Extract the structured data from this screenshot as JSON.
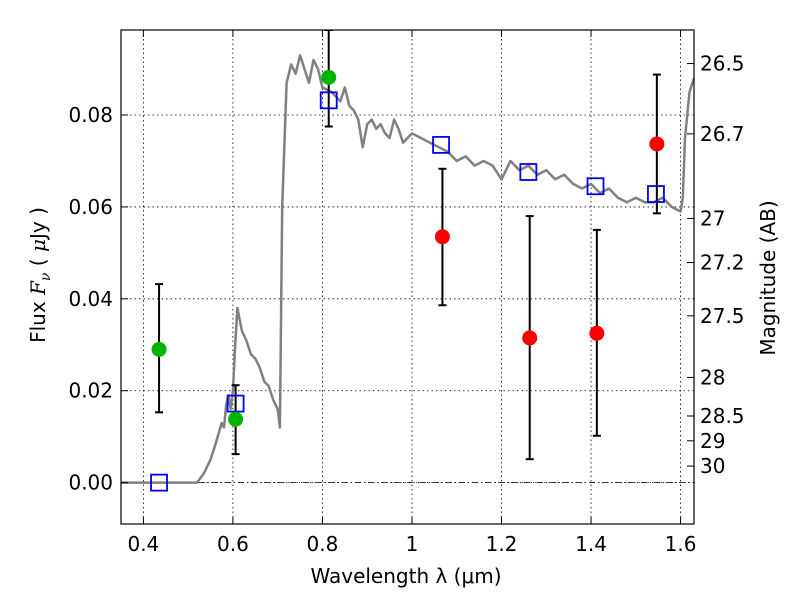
{
  "chart_data": {
    "type": "scatter",
    "xlabel": "Wavelength  λ (μm)",
    "ylabel_left": "Flux  F_ν  ( μJy )",
    "ylabel_right": "Magnitude (AB)",
    "xlim": [
      0.35,
      1.63
    ],
    "ylim": [
      -0.009,
      0.0985
    ],
    "grid": true,
    "x_ticks": [
      0.4,
      0.6,
      0.8,
      1.0,
      1.2,
      1.4,
      1.6
    ],
    "x_tick_labels": [
      "0.4",
      "0.6",
      "0.8",
      "1",
      "1.2",
      "1.4",
      "1.6"
    ],
    "y_ticks": [
      0.0,
      0.02,
      0.04,
      0.06,
      0.08
    ],
    "y_tick_labels": [
      "0.00",
      "0.02",
      "0.04",
      "0.06",
      "0.08"
    ],
    "right_ticks": [
      {
        "label": "26.5",
        "flux": 0.0912
      },
      {
        "label": "26.7",
        "flux": 0.0759
      },
      {
        "label": "27",
        "flux": 0.0575
      },
      {
        "label": "27.2",
        "flux": 0.0479
      },
      {
        "label": "27.5",
        "flux": 0.0363
      },
      {
        "label": "28",
        "flux": 0.0229
      },
      {
        "label": "28.5",
        "flux": 0.0145
      },
      {
        "label": "29",
        "flux": 0.0091
      },
      {
        "label": "30",
        "flux": 0.0036
      }
    ],
    "model_sed": {
      "color": "#808080",
      "points": [
        [
          0.35,
          0.0
        ],
        [
          0.52,
          0.0
        ],
        [
          0.535,
          0.002
        ],
        [
          0.55,
          0.005
        ],
        [
          0.56,
          0.008
        ],
        [
          0.575,
          0.013
        ],
        [
          0.58,
          0.012
        ],
        [
          0.585,
          0.017
        ],
        [
          0.59,
          0.019
        ],
        [
          0.595,
          0.016
        ],
        [
          0.6,
          0.02
        ],
        [
          0.605,
          0.03
        ],
        [
          0.61,
          0.038
        ],
        [
          0.62,
          0.033
        ],
        [
          0.63,
          0.031
        ],
        [
          0.64,
          0.028
        ],
        [
          0.65,
          0.027
        ],
        [
          0.66,
          0.025
        ],
        [
          0.67,
          0.022
        ],
        [
          0.68,
          0.021
        ],
        [
          0.69,
          0.018
        ],
        [
          0.7,
          0.016
        ],
        [
          0.705,
          0.012
        ],
        [
          0.71,
          0.06
        ],
        [
          0.72,
          0.087
        ],
        [
          0.73,
          0.091
        ],
        [
          0.74,
          0.089
        ],
        [
          0.75,
          0.093
        ],
        [
          0.76,
          0.09
        ],
        [
          0.77,
          0.087
        ],
        [
          0.78,
          0.092
        ],
        [
          0.79,
          0.09
        ],
        [
          0.8,
          0.086
        ],
        [
          0.82,
          0.085
        ],
        [
          0.84,
          0.083
        ],
        [
          0.85,
          0.086
        ],
        [
          0.86,
          0.082
        ],
        [
          0.87,
          0.081
        ],
        [
          0.88,
          0.079
        ],
        [
          0.89,
          0.073
        ],
        [
          0.9,
          0.078
        ],
        [
          0.91,
          0.079
        ],
        [
          0.92,
          0.077
        ],
        [
          0.93,
          0.078
        ],
        [
          0.94,
          0.076
        ],
        [
          0.95,
          0.075
        ],
        [
          0.96,
          0.079
        ],
        [
          0.97,
          0.077
        ],
        [
          0.98,
          0.074
        ],
        [
          1.0,
          0.076
        ],
        [
          1.02,
          0.075
        ],
        [
          1.04,
          0.074
        ],
        [
          1.06,
          0.073
        ],
        [
          1.08,
          0.072
        ],
        [
          1.1,
          0.07
        ],
        [
          1.12,
          0.071
        ],
        [
          1.14,
          0.069
        ],
        [
          1.16,
          0.07
        ],
        [
          1.18,
          0.069
        ],
        [
          1.2,
          0.066
        ],
        [
          1.22,
          0.07
        ],
        [
          1.24,
          0.068
        ],
        [
          1.26,
          0.069
        ],
        [
          1.28,
          0.067
        ],
        [
          1.3,
          0.068
        ],
        [
          1.32,
          0.066
        ],
        [
          1.34,
          0.067
        ],
        [
          1.36,
          0.065
        ],
        [
          1.38,
          0.064
        ],
        [
          1.4,
          0.065
        ],
        [
          1.42,
          0.063
        ],
        [
          1.44,
          0.064
        ],
        [
          1.46,
          0.062
        ],
        [
          1.48,
          0.061
        ],
        [
          1.5,
          0.062
        ],
        [
          1.52,
          0.061
        ],
        [
          1.54,
          0.061
        ],
        [
          1.56,
          0.062
        ],
        [
          1.58,
          0.06
        ],
        [
          1.6,
          0.059
        ],
        [
          1.605,
          0.062
        ],
        [
          1.61,
          0.075
        ],
        [
          1.62,
          0.085
        ],
        [
          1.63,
          0.088
        ]
      ]
    },
    "model_photometry": {
      "marker": "open-square",
      "color": "#0000ff",
      "points": [
        [
          0.435,
          0.0
        ],
        [
          0.606,
          0.0172
        ],
        [
          0.814,
          0.0832
        ],
        [
          1.065,
          0.0735
        ],
        [
          1.26,
          0.0676
        ],
        [
          1.41,
          0.0645
        ],
        [
          1.545,
          0.0628
        ]
      ]
    },
    "detections_green": {
      "color": "#00b400",
      "points": [
        {
          "x": 0.435,
          "y": 0.029,
          "err_lo": 0.0153,
          "err_hi": 0.0432
        },
        {
          "x": 0.606,
          "y": 0.0138,
          "err_lo": 0.0062,
          "err_hi": 0.0212
        },
        {
          "x": 0.814,
          "y": 0.0882,
          "err_lo": 0.0775,
          "err_hi": 0.0985
        }
      ]
    },
    "detections_red": {
      "color": "#ff0000",
      "points": [
        {
          "x": 1.068,
          "y": 0.0535,
          "err_lo": 0.0386,
          "err_hi": 0.0683
        },
        {
          "x": 1.263,
          "y": 0.0315,
          "err_lo": 0.0051,
          "err_hi": 0.058
        },
        {
          "x": 1.413,
          "y": 0.0325,
          "err_lo": 0.0102,
          "err_hi": 0.055
        },
        {
          "x": 1.547,
          "y": 0.0737,
          "err_lo": 0.0586,
          "err_hi": 0.0888
        }
      ]
    },
    "zero_line": 0.0
  }
}
